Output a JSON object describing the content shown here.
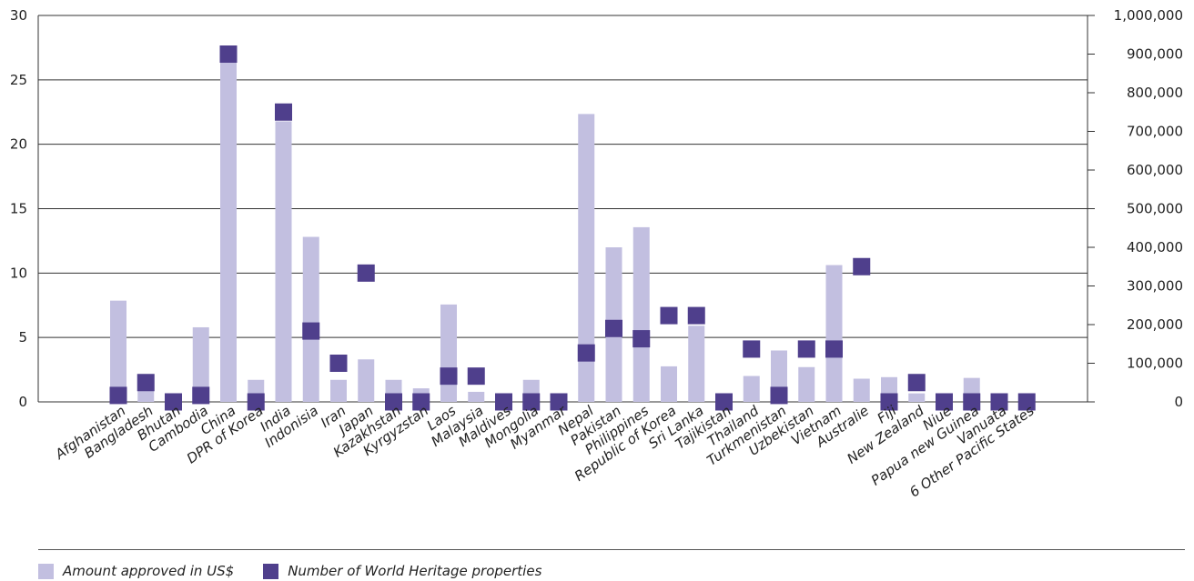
{
  "chart_data": {
    "type": "bar",
    "categories": [
      "Afghanistan",
      "Bangladesh",
      "Bhutan",
      "Cambodia",
      "China",
      "DPR of Korea",
      "India",
      "Indonisia",
      "Iran",
      "Japan",
      "Kazakhstan",
      "Kyrgyzstan",
      "Laos",
      "Malaysia",
      "Maldives",
      "Mongolia",
      "Myanmar",
      "Nepal",
      "Pakistan",
      "Philippines",
      "Republic of Korea",
      "Sri Lanka",
      "Tajikistan",
      "Thailand",
      "Turkmenistan",
      "Uzbekistan",
      "Vietnam",
      "Australie",
      "Fiji",
      "New Zealand",
      "Niue",
      "Papua new Guinea",
      "Vanuata",
      "6 Other Pacific States"
    ],
    "series": [
      {
        "name": "Amount approved in US$",
        "axis": "right",
        "style": "bar",
        "values": [
          262000,
          32000,
          0,
          193000,
          908000,
          57000,
          726000,
          427000,
          57000,
          110000,
          57000,
          35000,
          252000,
          26000,
          0,
          57000,
          0,
          745000,
          400000,
          452000,
          92000,
          197000,
          0,
          67000,
          133000,
          90000,
          354000,
          60000,
          64000,
          22000,
          0,
          62000,
          0,
          0
        ]
      },
      {
        "name": "Number of World Heritage properties",
        "axis": "left",
        "style": "marker",
        "values": [
          0.5,
          1.5,
          0,
          0.5,
          27,
          0,
          22.5,
          5.5,
          3,
          10,
          0,
          0,
          2,
          2,
          0,
          0,
          0,
          3.8,
          5.7,
          4.9,
          6.7,
          6.7,
          0,
          4.1,
          0.5,
          4.1,
          4.1,
          10.5,
          0,
          1.5,
          0,
          0,
          0,
          0
        ]
      }
    ],
    "y_left": {
      "min": 0,
      "max": 30,
      "ticks": [
        0,
        5,
        10,
        15,
        20,
        25,
        30
      ],
      "tick_labels": [
        "0",
        "5",
        "10",
        "15",
        "20",
        "25",
        "30"
      ]
    },
    "y_right": {
      "min": 0,
      "max": 1000000,
      "ticks": [
        0,
        100000,
        200000,
        300000,
        400000,
        500000,
        600000,
        700000,
        800000,
        900000,
        1000000
      ],
      "tick_labels": [
        "0",
        "100,000",
        "200,000",
        "300,000",
        "400,000",
        "500,000",
        "600,000",
        "700,000",
        "800,000",
        "900,000",
        "1,000,000"
      ]
    },
    "grid": "horizontal",
    "legend_position": "bottom-left",
    "colors": {
      "bar": "#c2bfe0",
      "marker": "#4f3f8c",
      "grid": "#333333"
    }
  },
  "legend": {
    "items": [
      {
        "label": "Amount approved in US$",
        "color": "#c2bfe0"
      },
      {
        "label": "Number of World Heritage properties",
        "color": "#4f3f8c"
      }
    ]
  }
}
